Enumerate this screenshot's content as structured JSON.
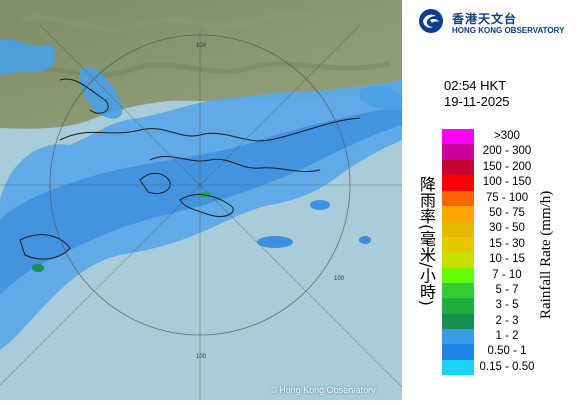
{
  "organization": {
    "name_zh": "香港天文台",
    "name_en": "HONG KONG OBSERVATORY"
  },
  "timestamp": {
    "time": "02:54 HKT",
    "date": "19-11-2025"
  },
  "legend": {
    "title_zh": "降雨率(毫米/小時)",
    "title_en": "Rainfall Rate (mm/h)",
    "items": [
      {
        "label": ">300",
        "color": "#ff00ff"
      },
      {
        "label": "200 - 300",
        "color": "#cc0099"
      },
      {
        "label": "150 - 200",
        "color": "#c80032"
      },
      {
        "label": "100 - 150",
        "color": "#ff0000"
      },
      {
        "label": "75 - 100",
        "color": "#ff6600"
      },
      {
        "label": "50 - 75",
        "color": "#ffa500"
      },
      {
        "label": "30 - 50",
        "color": "#e6b800"
      },
      {
        "label": "15 - 30",
        "color": "#e6c800"
      },
      {
        "label": "10 - 15",
        "color": "#c8e000"
      },
      {
        "label": "7 - 10",
        "color": "#66ff00"
      },
      {
        "label": "5 - 7",
        "color": "#33cc33"
      },
      {
        "label": "3 - 5",
        "color": "#1fae3f"
      },
      {
        "label": "2 - 3",
        "color": "#178f52"
      },
      {
        "label": "1 - 2",
        "color": "#3a9bea"
      },
      {
        "label": "0.50 - 1",
        "color": "#1f86ec"
      },
      {
        "label": "0.15 - 0.50",
        "color": "#19d3f2"
      }
    ]
  },
  "map": {
    "range_ring_labels": [
      "100",
      "100",
      "100"
    ],
    "copyright": "© Hong Kong Observatory"
  }
}
